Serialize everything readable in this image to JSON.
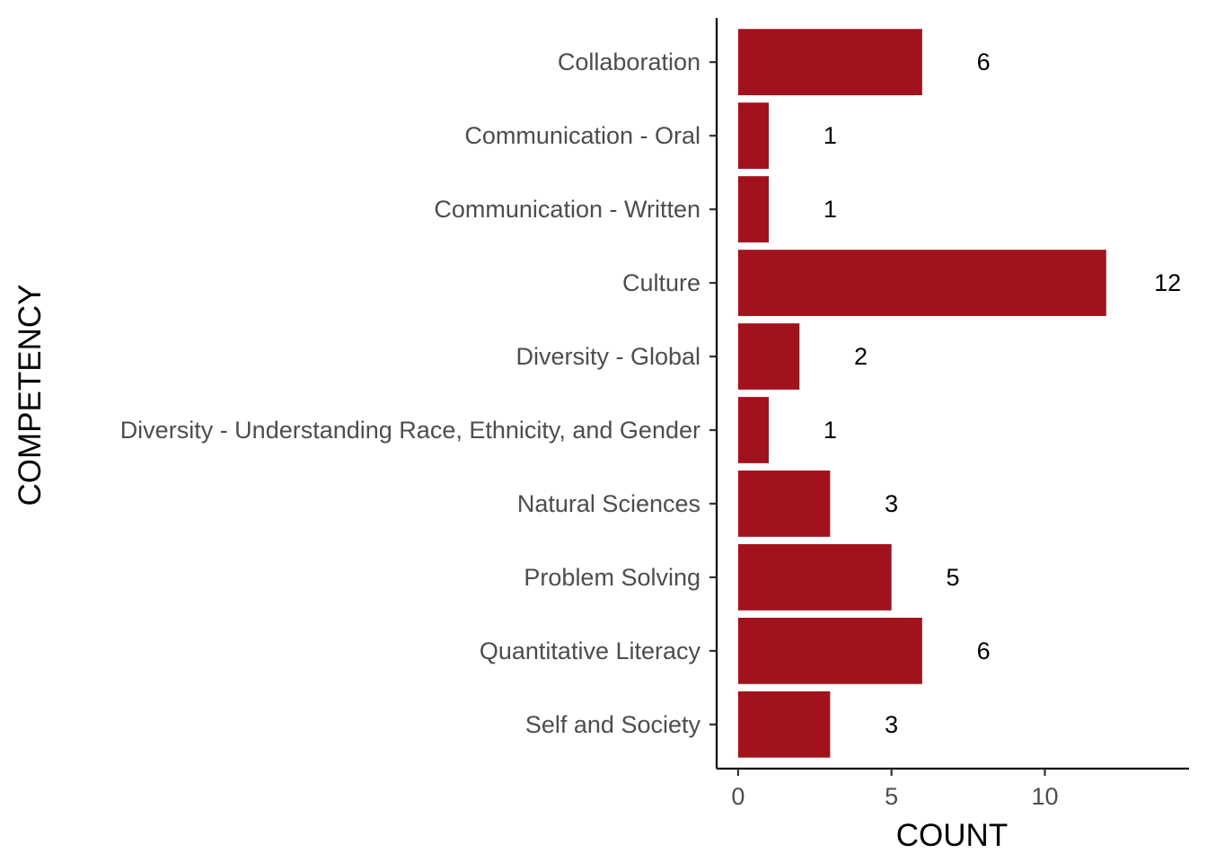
{
  "chart_data": {
    "type": "bar",
    "orientation": "horizontal",
    "title": "",
    "xlabel": "COUNT",
    "ylabel": "COMPETENCY",
    "categories": [
      "Collaboration",
      "Communication - Oral",
      "Communication - Written",
      "Culture",
      "Diversity - Global",
      "Diversity - Understanding Race, Ethnicity, and Gender",
      "Natural Sciences",
      "Problem Solving",
      "Quantitative Literacy",
      "Self and Society"
    ],
    "values": [
      6,
      1,
      1,
      12,
      2,
      1,
      3,
      5,
      6,
      3
    ],
    "data_labels": [
      "6",
      "1",
      "1",
      "12",
      "2",
      "1",
      "3",
      "5",
      "6",
      "3"
    ],
    "xticks": [
      0,
      5,
      10
    ],
    "xtick_labels": [
      "0",
      "5",
      "10"
    ],
    "xlim": [
      -0.7,
      14.7
    ],
    "bar_color": "#a2121c",
    "grid": false,
    "legend": "none"
  }
}
